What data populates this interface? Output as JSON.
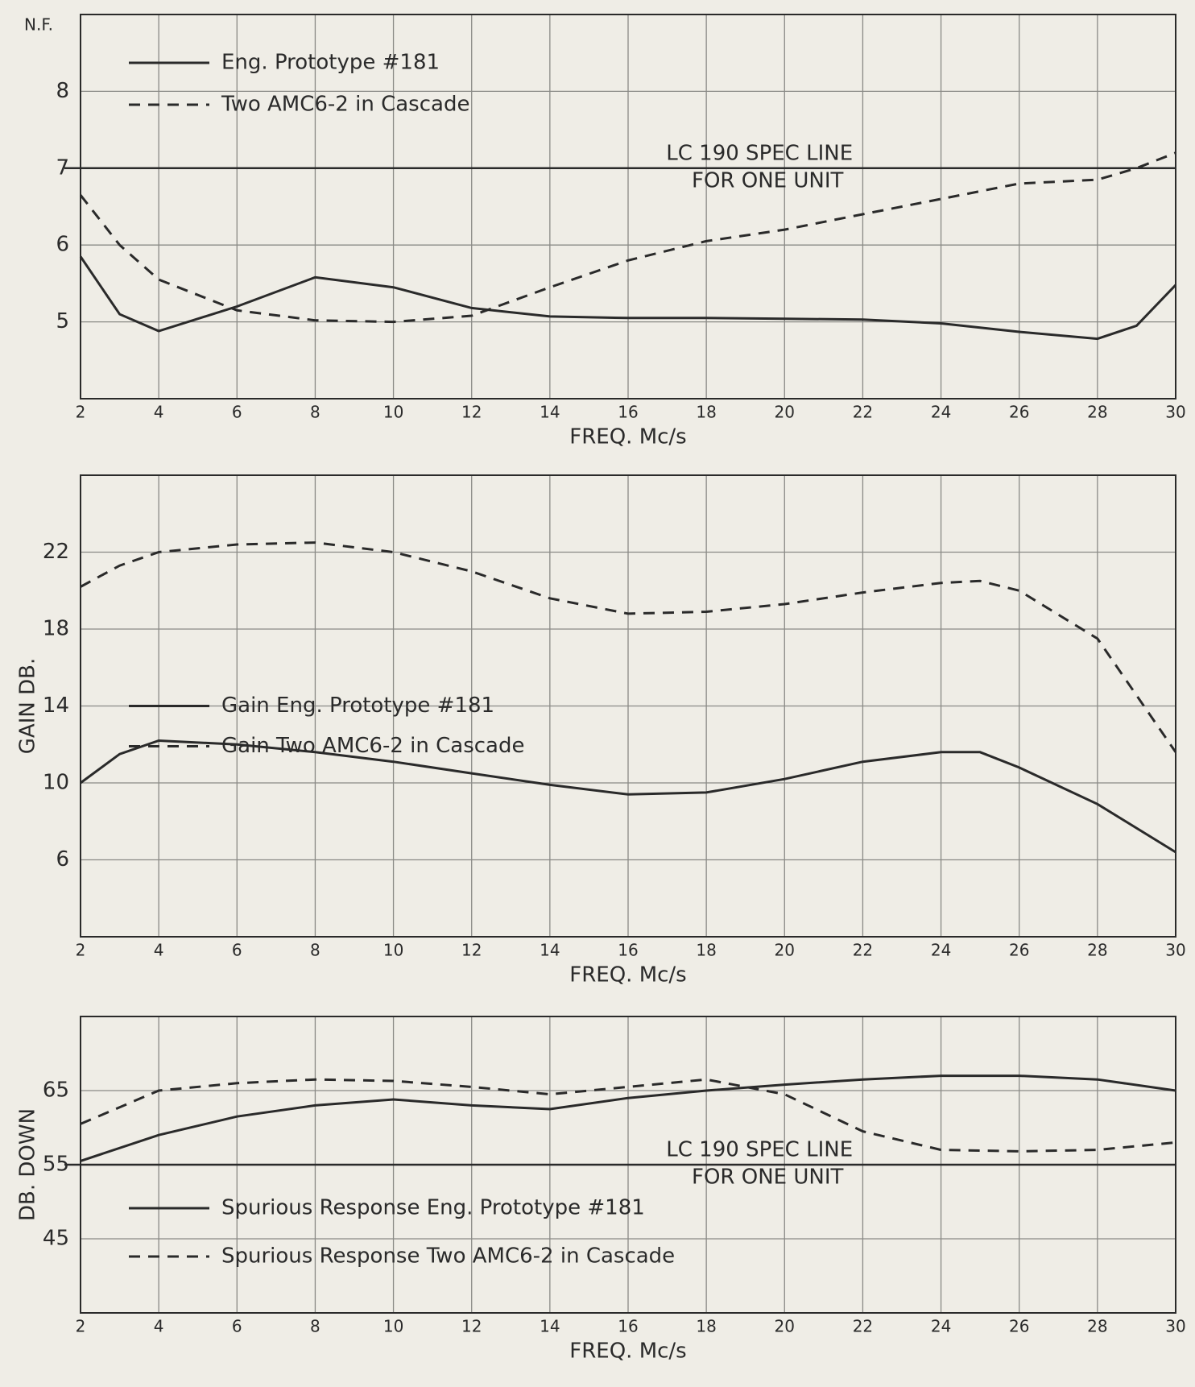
{
  "chart_data": [
    {
      "type": "line",
      "y_label": "N.F.",
      "x_label": "FREQ. Mc/s",
      "x": [
        2,
        3,
        4,
        6,
        8,
        10,
        12,
        14,
        16,
        18,
        20,
        22,
        24,
        26,
        28,
        29,
        30
      ],
      "series": [
        {
          "name": "Eng. Prototype #181",
          "color": "#2a2a2a",
          "linestyle": "solid",
          "values": [
            5.85,
            5.1,
            4.88,
            5.2,
            5.58,
            5.45,
            5.18,
            5.07,
            5.05,
            5.05,
            5.04,
            5.03,
            4.98,
            4.87,
            4.78,
            4.95,
            5.48
          ]
        },
        {
          "name": "Two AMC6-2 in Cascade",
          "color": "#2a2a2a",
          "linestyle": "dashed",
          "values": [
            6.65,
            6.0,
            5.55,
            5.15,
            5.02,
            5.0,
            5.08,
            5.45,
            5.8,
            6.05,
            6.2,
            6.4,
            6.6,
            6.8,
            6.85,
            7.0,
            7.2
          ]
        }
      ],
      "spec_line": {
        "value": 7,
        "label": "LC 190 SPEC LINE",
        "sublabel": "FOR ONE UNIT"
      },
      "xlim": [
        2,
        30
      ],
      "xticks": [
        2,
        4,
        6,
        8,
        10,
        12,
        14,
        16,
        18,
        20,
        22,
        24,
        26,
        28,
        30
      ],
      "ylim": [
        4,
        9
      ],
      "yticks": [
        5,
        6,
        7,
        8
      ],
      "grid": true,
      "legend": "upper left"
    },
    {
      "type": "line",
      "y_label": "GAIN DB.",
      "x_label": "FREQ. Mc/s",
      "x": [
        2,
        3,
        4,
        6,
        8,
        10,
        12,
        14,
        16,
        18,
        20,
        22,
        24,
        25,
        26,
        28,
        30
      ],
      "series": [
        {
          "name": "Gain Eng. Prototype #181",
          "color": "#2a2a2a",
          "linestyle": "solid",
          "values": [
            10,
            11.5,
            12.2,
            12.0,
            11.6,
            11.1,
            10.5,
            9.9,
            9.4,
            9.5,
            10.2,
            11.1,
            11.6,
            11.6,
            10.8,
            8.9,
            6.4
          ]
        },
        {
          "name": "Gain Two AMC6-2 in Cascade",
          "color": "#2a2a2a",
          "linestyle": "dashed",
          "values": [
            20.2,
            21.3,
            22.0,
            22.4,
            22.5,
            22.0,
            21.0,
            19.6,
            18.8,
            18.9,
            19.3,
            19.9,
            20.4,
            20.5,
            20.0,
            17.5,
            11.6
          ]
        }
      ],
      "xlim": [
        2,
        30
      ],
      "xticks": [
        2,
        4,
        6,
        8,
        10,
        12,
        14,
        16,
        18,
        20,
        22,
        24,
        26,
        28,
        30
      ],
      "ylim": [
        2,
        26
      ],
      "yticks": [
        6,
        10,
        14,
        18,
        22
      ],
      "grid": true,
      "legend": "center left"
    },
    {
      "type": "line",
      "y_label": "DB. DOWN",
      "x_label": "FREQ. Mc/s",
      "x": [
        2,
        4,
        6,
        8,
        10,
        12,
        14,
        16,
        18,
        20,
        22,
        24,
        26,
        28,
        30
      ],
      "series": [
        {
          "name": "Spurious Response Eng. Prototype #181",
          "color": "#2a2a2a",
          "linestyle": "solid",
          "values": [
            55.5,
            59,
            61.5,
            63,
            63.8,
            63,
            62.5,
            64,
            65,
            65.8,
            66.5,
            67,
            67,
            66.5,
            65
          ]
        },
        {
          "name": "Spurious Response Two AMC6-2 in Cascade",
          "color": "#2a2a2a",
          "linestyle": "dashed",
          "values": [
            60.5,
            65,
            66,
            66.5,
            66.3,
            65.5,
            64.5,
            65.5,
            66.5,
            64.5,
            59.5,
            57,
            56.8,
            57,
            58
          ]
        }
      ],
      "spec_line": {
        "value": 55,
        "label": "LC 190 SPEC LINE",
        "sublabel": "FOR ONE UNIT"
      },
      "xlim": [
        2,
        30
      ],
      "xticks": [
        2,
        4,
        6,
        8,
        10,
        12,
        14,
        16,
        18,
        20,
        22,
        24,
        26,
        28,
        30
      ],
      "ylim": [
        35,
        75
      ],
      "yticks": [
        45,
        55,
        65
      ],
      "grid": true,
      "legend": "lower left"
    }
  ]
}
